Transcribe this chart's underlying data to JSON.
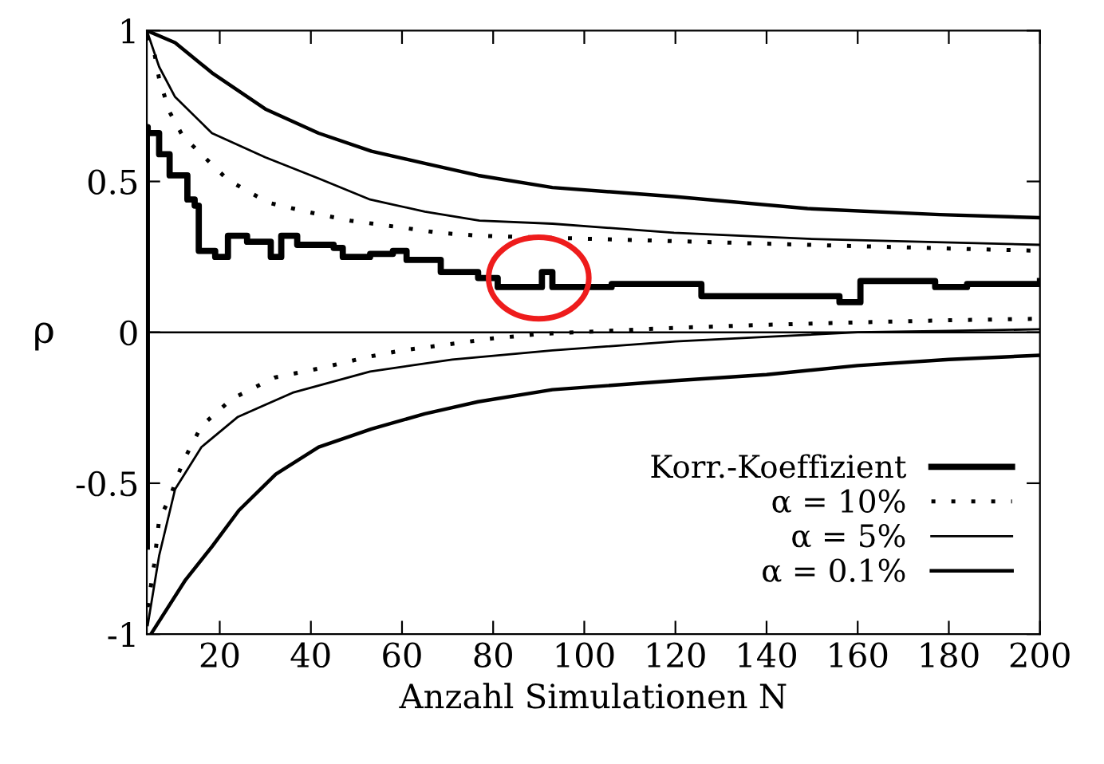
{
  "chart_data": {
    "type": "line",
    "xlabel": "Anzahl Simulationen N",
    "ylabel": "ρ",
    "xlim": [
      4,
      200
    ],
    "ylim": [
      -1,
      1
    ],
    "xticks": [
      20,
      40,
      60,
      80,
      100,
      120,
      140,
      160,
      180,
      200
    ],
    "yticks": [
      {
        "value": -1,
        "label": "-1"
      },
      {
        "value": -0.5,
        "label": "-0.5"
      },
      0,
      0.5,
      1
    ],
    "grid": false,
    "legend": "bottom right",
    "marker": "none",
    "ref_lines": [
      {
        "axis": "y",
        "value": 0,
        "color": "#000000"
      }
    ],
    "series": [
      {
        "name": "Korr.-Koeffizient",
        "type": "step",
        "color": "#000000",
        "line_style": "solid",
        "x": [
          4,
          4,
          4.2,
          6.7,
          9,
          12.9,
          14.5,
          15.4,
          19,
          21.8,
          26,
          31.2,
          33.5,
          37,
          45,
          47,
          53,
          58,
          61,
          68.5,
          76.7,
          81,
          88,
          90.7,
          93,
          106,
          125.7,
          140,
          156,
          160.6,
          177,
          184,
          200
        ],
        "values": [
          -0.71,
          0.68,
          0.66,
          0.59,
          0.52,
          0.44,
          0.42,
          0.27,
          0.25,
          0.32,
          0.3,
          0.25,
          0.32,
          0.29,
          0.28,
          0.25,
          0.26,
          0.27,
          0.24,
          0.2,
          0.18,
          0.15,
          0.15,
          0.2,
          0.15,
          0.16,
          0.12,
          0.12,
          0.1,
          0.17,
          0.15,
          0.16,
          0.17
        ]
      },
      {
        "name": "α = 10%",
        "color": "#000000",
        "line_style": "dotted",
        "x": [
          4,
          5.6,
          6.7,
          9,
          11.9,
          21.8,
          30.6,
          39,
          48.7,
          58.6,
          68,
          77,
          101,
          149,
          200
        ],
        "values": [
          0.98,
          0.93,
          0.84,
          0.73,
          0.65,
          0.505,
          0.43,
          0.4,
          0.37,
          0.35,
          0.33,
          0.32,
          0.31,
          0.29,
          0.27
        ]
      },
      {
        "color": "#000000",
        "line_style": "dotted",
        "x": [
          4.2,
          5.6,
          6.7,
          9,
          11.9,
          16,
          22.7,
          32,
          41.7,
          53,
          60,
          80,
          90.7,
          120,
          140,
          160,
          180,
          200
        ],
        "values": [
          -0.91,
          -0.77,
          -0.62,
          -0.55,
          -0.43,
          -0.31,
          -0.22,
          -0.15,
          -0.12,
          -0.08,
          -0.06,
          -0.02,
          -0.005,
          0.015,
          0.025,
          0.033,
          0.04,
          0.045
        ]
      },
      {
        "name": "α = 5%",
        "color": "#000000",
        "line_style": "solid",
        "x": [
          4,
          6.7,
          10.2,
          18.3,
          30,
          41.7,
          53,
          65,
          77,
          93,
          119.7,
          149,
          200
        ],
        "values": [
          1.0,
          0.88,
          0.78,
          0.66,
          0.58,
          0.51,
          0.44,
          0.4,
          0.37,
          0.36,
          0.33,
          0.31,
          0.29
        ]
      },
      {
        "color": "#000000",
        "line_style": "solid",
        "x": [
          4.2,
          6.7,
          10.2,
          16,
          24,
          36,
          53,
          71,
          93,
          120,
          140,
          160,
          180,
          200
        ],
        "values": [
          -0.97,
          -0.74,
          -0.52,
          -0.38,
          -0.28,
          -0.2,
          -0.13,
          -0.09,
          -0.06,
          -0.03,
          -0.015,
          0.0,
          0.005,
          0.01
        ]
      },
      {
        "name": "α = 0.1%",
        "color": "#000000",
        "line_style": "solid",
        "x": [
          4,
          10.2,
          18.3,
          30,
          41.7,
          53.3,
          65,
          76.7,
          93,
          119.7,
          149,
          178,
          200
        ],
        "values": [
          1.0,
          0.96,
          0.86,
          0.74,
          0.66,
          0.6,
          0.56,
          0.52,
          0.48,
          0.45,
          0.41,
          0.39,
          0.38
        ]
      },
      {
        "color": "#000000",
        "line_style": "solid",
        "x": [
          4.9,
          12.5,
          18.3,
          24.2,
          32.3,
          41.7,
          53.3,
          65,
          76.7,
          93,
          120,
          140,
          160,
          180,
          200
        ],
        "values": [
          -1.0,
          -0.82,
          -0.71,
          -0.59,
          -0.47,
          -0.38,
          -0.32,
          -0.27,
          -0.23,
          -0.19,
          -0.16,
          -0.14,
          -0.11,
          -0.09,
          -0.076
        ]
      }
    ]
  }
}
